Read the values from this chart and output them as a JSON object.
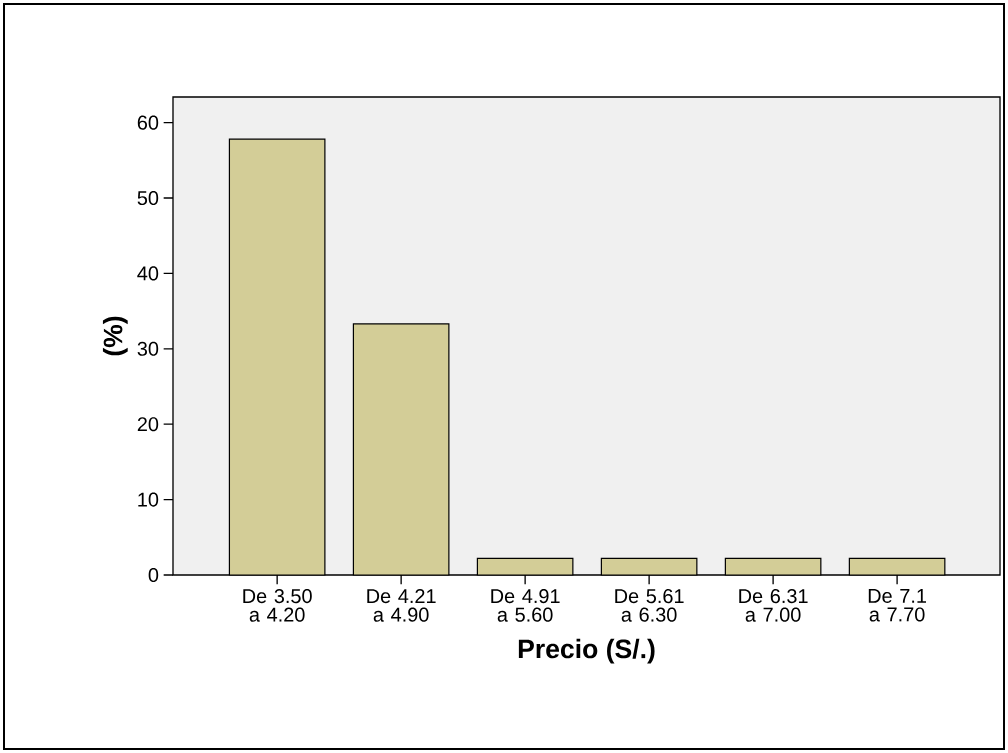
{
  "chart_data": {
    "type": "bar",
    "xlabel": "Precio (S/.)",
    "ylabel": "(%)",
    "categories": [
      "De 3.50 a 4.20",
      "De 4.21 a 4.90",
      "De 4.91 a 5.60",
      "De 5.61 a 6.30",
      "De 6.31 a 7.00",
      "De 7.1 a 7.70"
    ],
    "values": [
      57.8,
      33.3,
      2.2,
      2.2,
      2.2,
      2.2
    ],
    "color": "#d3cd97",
    "ylim": [
      0,
      63.4
    ],
    "yticks": [
      0,
      10,
      20,
      30,
      40,
      50,
      60
    ],
    "grid": false
  }
}
